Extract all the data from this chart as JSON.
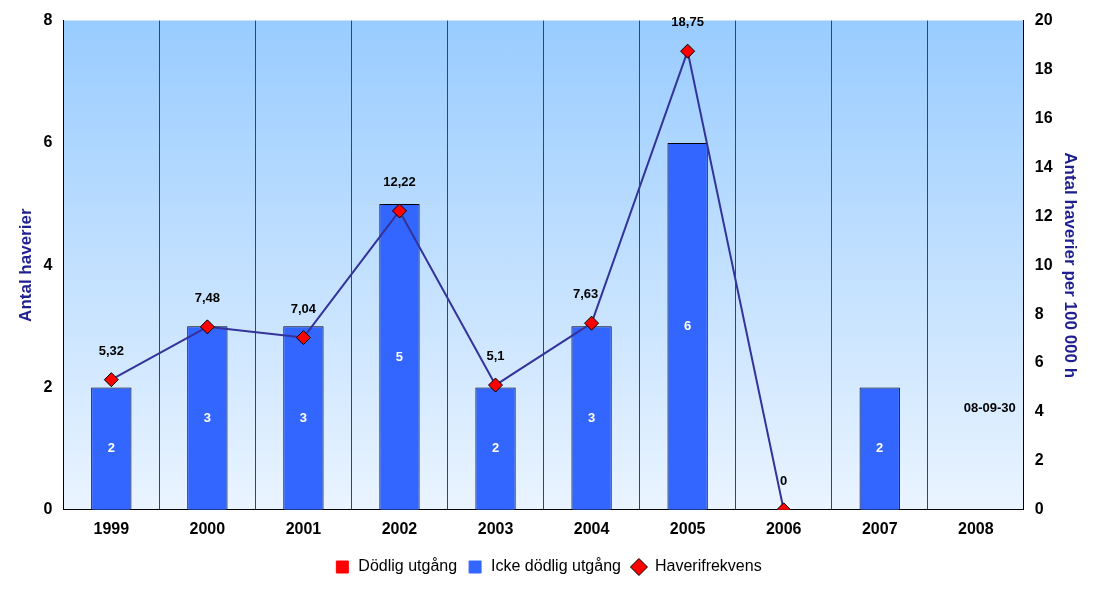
{
  "chart_data": {
    "type": "bar",
    "stacked": true,
    "ylabel": "Antal haverier",
    "y2label": "Antal haverier per 100 000 h",
    "categories": [
      "1999",
      "2000",
      "2001",
      "2002",
      "2003",
      "2004",
      "2005",
      "2006",
      "2007",
      "2008"
    ],
    "series": [
      {
        "name": "Dödlig utgång",
        "color": "#ff0000",
        "values": [
          null,
          null,
          null,
          null,
          null,
          null,
          null,
          null,
          null,
          null
        ]
      },
      {
        "name": "Icke dödlig utgång",
        "color": "#3366ff",
        "values": [
          2,
          3,
          3,
          5,
          2,
          3,
          6,
          null,
          2,
          null
        ],
        "data_labels": true
      },
      {
        "name": "Haverifrekvens",
        "type": "line",
        "axis": "y2",
        "color": "#333399",
        "marker": "diamond",
        "values": [
          5.32,
          7.48,
          7.04,
          12.22,
          5.1,
          7.63,
          18.75,
          0,
          null,
          null
        ],
        "value_labels": [
          "5,32",
          "7,48",
          "7,04",
          "12,22",
          "5,1",
          "7,63",
          "18,75",
          "0",
          null,
          null
        ]
      }
    ],
    "ylim": [
      0,
      8
    ],
    "yticks": [
      0,
      2,
      4,
      6,
      8
    ],
    "y2lim": [
      0,
      20
    ],
    "y2ticks": [
      0,
      2,
      4,
      6,
      8,
      10,
      12,
      14,
      16,
      18,
      20
    ],
    "grid": "x",
    "legend": "bottom",
    "annotations": [
      "08-09-30"
    ]
  }
}
